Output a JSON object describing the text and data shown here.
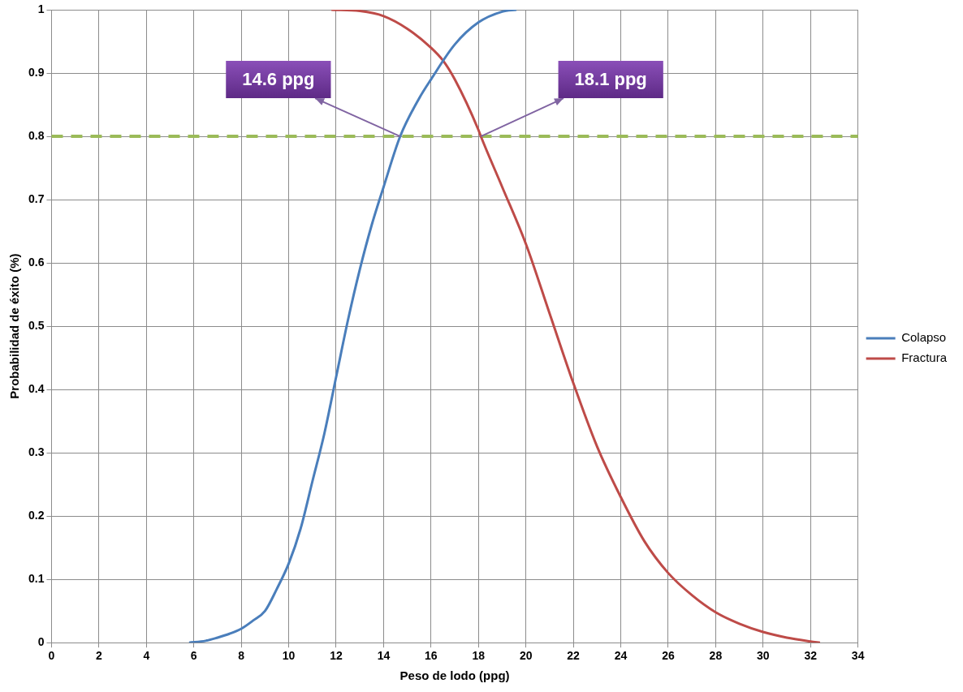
{
  "chart_data": {
    "type": "line",
    "xlabel": "Peso de lodo (ppg)",
    "ylabel": "Probabilidad de éxito (%)",
    "xlim": [
      0,
      34
    ],
    "xticks": [
      0,
      2,
      4,
      6,
      8,
      10,
      12,
      14,
      16,
      18,
      20,
      22,
      24,
      26,
      28,
      30,
      32,
      34
    ],
    "ylim": [
      0,
      1
    ],
    "yticks": [
      0,
      0.1,
      0.2,
      0.3,
      0.4,
      0.5,
      0.6,
      0.7,
      0.8,
      0.9,
      1
    ],
    "grid": true,
    "legend": "right",
    "marker": "none",
    "line_style": "solid",
    "series": [
      {
        "name": "Colapso",
        "color": "#4a7ebb",
        "x": [
          5.8,
          6.5,
          7,
          7.5,
          8,
          8.5,
          9,
          9.5,
          10,
          10.5,
          11,
          11.5,
          12,
          12.5,
          13,
          13.5,
          14,
          14.7,
          15.5,
          16,
          17,
          18,
          19,
          19.6
        ],
        "values": [
          0,
          0.003,
          0.008,
          0.014,
          0.022,
          0.035,
          0.05,
          0.085,
          0.125,
          0.18,
          0.255,
          0.33,
          0.42,
          0.51,
          0.59,
          0.66,
          0.72,
          0.8,
          0.86,
          0.89,
          0.945,
          0.98,
          0.997,
          1
        ]
      },
      {
        "name": "Fractura",
        "color": "#be4b48",
        "x": [
          11.8,
          13,
          14,
          15,
          16,
          16.5,
          17,
          18,
          18.1,
          19,
          20,
          21,
          22,
          23,
          24,
          25,
          26,
          27,
          28,
          29,
          30,
          31,
          32,
          32.4
        ],
        "values": [
          1,
          0.998,
          0.99,
          0.97,
          0.94,
          0.92,
          0.89,
          0.81,
          0.8,
          0.72,
          0.63,
          0.52,
          0.41,
          0.31,
          0.23,
          0.16,
          0.11,
          0.075,
          0.048,
          0.03,
          0.017,
          0.008,
          0.002,
          0
        ]
      }
    ],
    "ref_lines": [
      {
        "axis": "y",
        "value": 0.8,
        "color": "#9bbb59",
        "line_style": "dashed"
      }
    ],
    "annotations": [
      {
        "text": "14.6 ppg",
        "x": 14.7,
        "y": 0.8
      },
      {
        "text": "18.1 ppg",
        "x": 18.1,
        "y": 0.8
      }
    ]
  }
}
